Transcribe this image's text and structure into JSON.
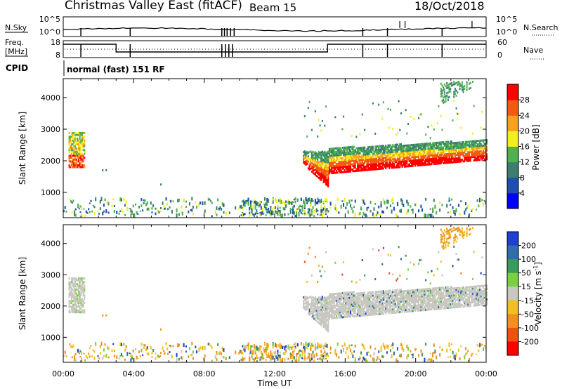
{
  "header": {
    "station": "Christmas Valley East (fitACF)",
    "beam": "Beam 15",
    "date": "18/Oct/2018"
  },
  "top_panels": {
    "nsky_label": "N.Sky",
    "nsearch_label": "N.Search",
    "freq_label_1": "Freq.",
    "freq_label_2": "[MHz]",
    "nave_label": "Nave",
    "cpid_label": "CPID",
    "cpid_text": "normal (fast) 151 RF",
    "noise_ticks": [
      "10^5",
      "10^0"
    ],
    "noise_right_ticks": [
      "10^5",
      "10^0"
    ],
    "freq_ticks": [
      "18",
      "8"
    ],
    "nave_ticks": [
      "60",
      "0"
    ]
  },
  "chart_data": [
    {
      "type": "heatmap",
      "name": "power",
      "ylabel": "Slant Range [km]",
      "yticks": [
        1000,
        2000,
        3000,
        4000
      ],
      "ylim": [
        200,
        4600
      ],
      "colorbar_label": "Power [dB]",
      "colorbar_ticks": [
        4,
        8,
        12,
        16,
        20,
        24,
        28
      ],
      "colorbar_range": [
        0,
        32
      ],
      "colorbar_colors": [
        "#0000ff",
        "#1f4fae",
        "#3c7f70",
        "#4fb14f",
        "#f2ef1e",
        "#f6a21b",
        "#f35a14",
        "#ff0000"
      ]
    },
    {
      "type": "heatmap",
      "name": "velocity",
      "ylabel": "Slant Range [km]",
      "yticks": [
        1000,
        2000,
        3000,
        4000
      ],
      "ylim": [
        200,
        4600
      ],
      "colorbar_label": "Velocity [m s^-1]",
      "colorbar_ticks": [
        "200",
        "100",
        "50",
        "15",
        "-15",
        "-50",
        "-100",
        "-200"
      ],
      "colorbar_colors": [
        "#1f3fd0",
        "#2f6ea8",
        "#3a9a5a",
        "#7ad040",
        "#c8c8c0",
        "#f0c020",
        "#f09020",
        "#f05010",
        "#ff0000"
      ]
    }
  ],
  "xaxis": {
    "label": "Time UT",
    "ticks": [
      "00:00",
      "04:00",
      "08:00",
      "12:00",
      "16:00",
      "20:00",
      "00:00"
    ]
  }
}
